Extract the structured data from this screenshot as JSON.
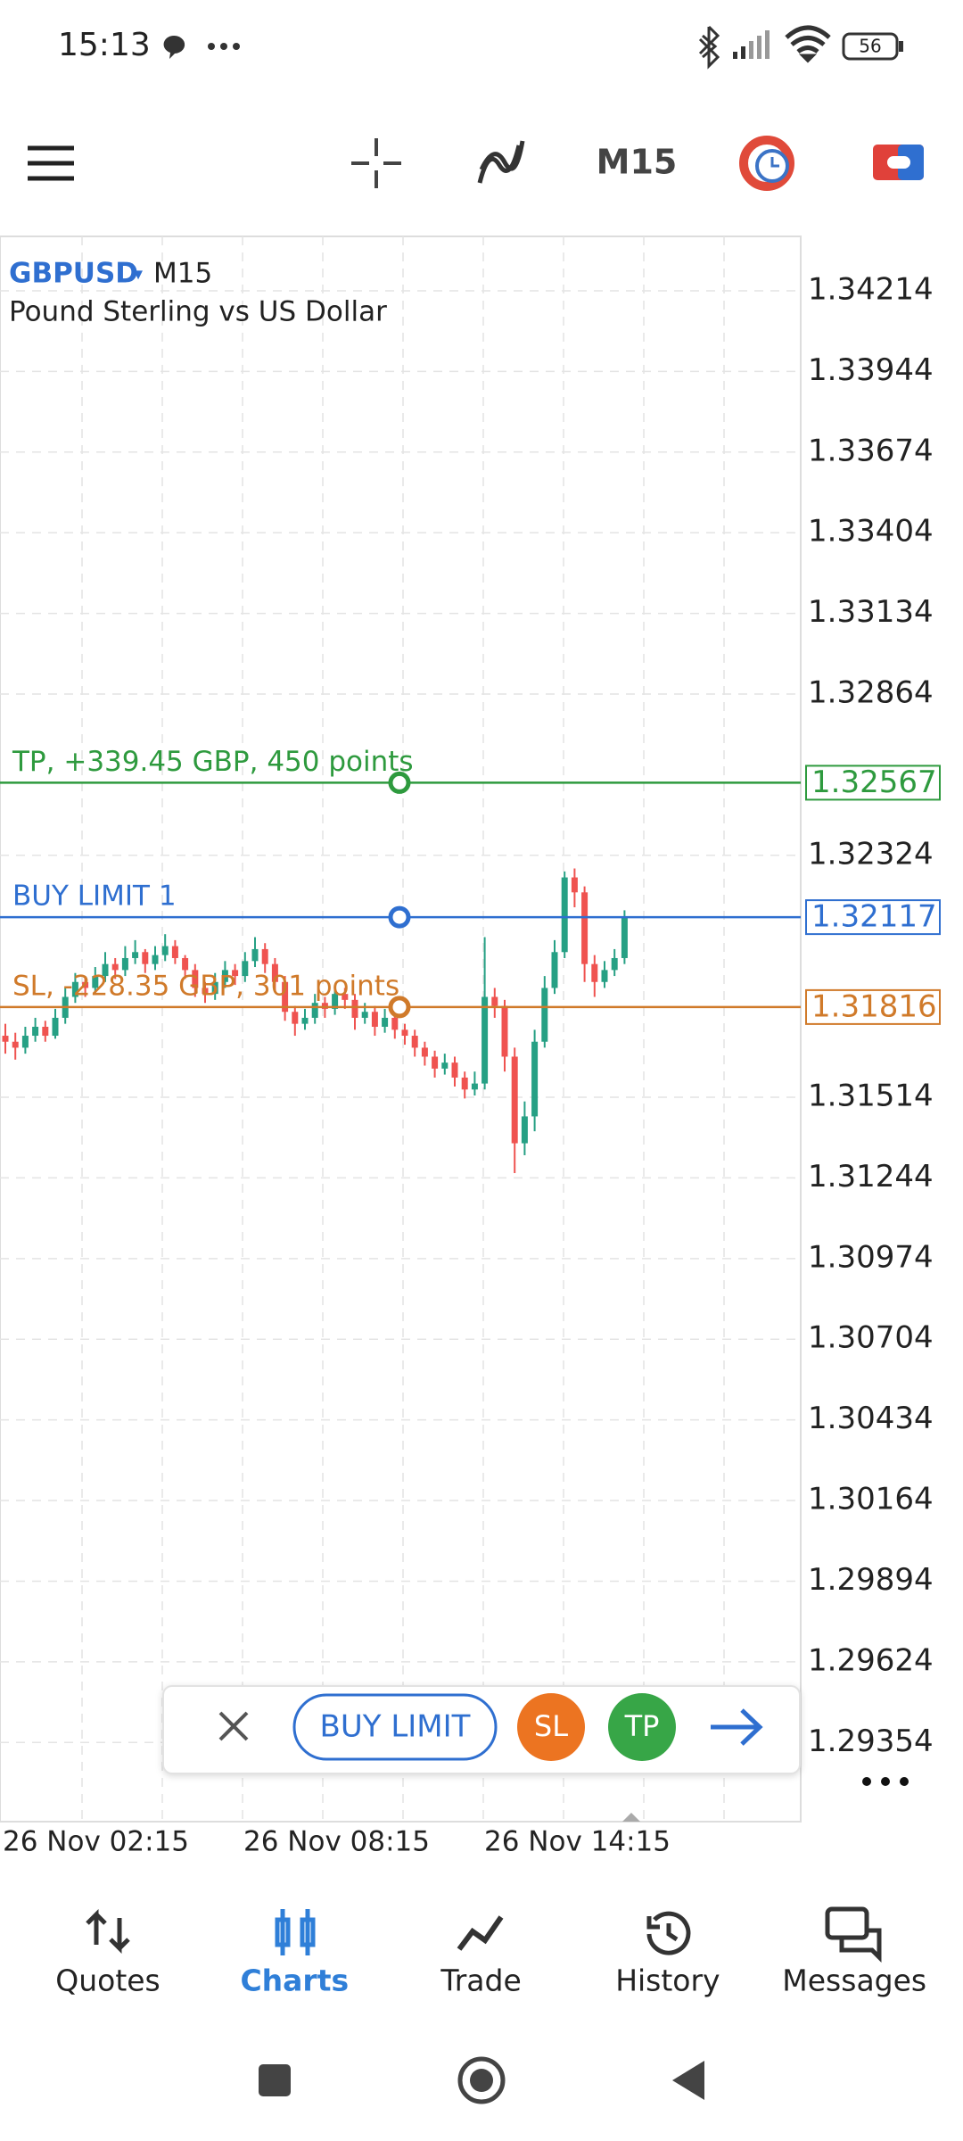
{
  "status_bar": {
    "time": "15:13",
    "battery": "56"
  },
  "toolbar": {
    "timeframe": "M15"
  },
  "chart_data": {
    "type": "candlestick",
    "symbol": "GBPUSD",
    "timeframe": "M15",
    "description": "Pound Sterling vs US Dollar",
    "bull_color": "#26a084",
    "bear_color": "#ef5350",
    "ylim": [
      1.29089,
      1.34396
    ],
    "yticks": [
      1.34214,
      1.33944,
      1.33674,
      1.33404,
      1.33134,
      1.32864,
      1.32324,
      1.31514,
      1.31244,
      1.30974,
      1.30704,
      1.30434,
      1.30164,
      1.29894,
      1.29624,
      1.29354
    ],
    "grid": true,
    "x_labels": [
      "26 Nov 02:15",
      "26 Nov 08:15",
      "26 Nov 14:15"
    ],
    "levels": [
      {
        "label": "TP, +339.45 GBP, 450 points",
        "price": 1.32567,
        "color": "#2e9a3e"
      },
      {
        "label": "BUY LIMIT 1",
        "price": 1.32117,
        "color": "#2f6fd0"
      },
      {
        "label": "SL, -228.35 GBP, 301 points",
        "price": 1.31816,
        "color": "#d07a2a"
      }
    ],
    "candles": [
      [
        1.3172,
        1.3176,
        1.3166,
        1.317
      ],
      [
        1.317,
        1.3173,
        1.3164,
        1.3168
      ],
      [
        1.3168,
        1.3175,
        1.3166,
        1.3172
      ],
      [
        1.3172,
        1.3178,
        1.317,
        1.3175
      ],
      [
        1.3175,
        1.3177,
        1.317,
        1.3172
      ],
      [
        1.3172,
        1.3181,
        1.3171,
        1.3178
      ],
      [
        1.3178,
        1.3188,
        1.3176,
        1.3185
      ],
      [
        1.3185,
        1.3193,
        1.3183,
        1.319
      ],
      [
        1.319,
        1.3192,
        1.3185,
        1.3188
      ],
      [
        1.3188,
        1.3195,
        1.3186,
        1.3192
      ],
      [
        1.3192,
        1.32,
        1.319,
        1.3196
      ],
      [
        1.3196,
        1.3198,
        1.3191,
        1.3194
      ],
      [
        1.3194,
        1.3202,
        1.3192,
        1.3198
      ],
      [
        1.3198,
        1.3204,
        1.3196,
        1.32
      ],
      [
        1.32,
        1.3201,
        1.3193,
        1.3196
      ],
      [
        1.3196,
        1.3202,
        1.3194,
        1.3199
      ],
      [
        1.3199,
        1.3206,
        1.3197,
        1.3202
      ],
      [
        1.3202,
        1.3204,
        1.3196,
        1.3198
      ],
      [
        1.3198,
        1.3199,
        1.3191,
        1.3194
      ],
      [
        1.3194,
        1.3196,
        1.3185,
        1.3188
      ],
      [
        1.3188,
        1.319,
        1.3183,
        1.3186
      ],
      [
        1.3186,
        1.3193,
        1.3184,
        1.319
      ],
      [
        1.319,
        1.3197,
        1.3188,
        1.3194
      ],
      [
        1.3194,
        1.3196,
        1.3189,
        1.3192
      ],
      [
        1.3192,
        1.32,
        1.319,
        1.3197
      ],
      [
        1.3197,
        1.3205,
        1.3195,
        1.3201
      ],
      [
        1.3201,
        1.3203,
        1.3193,
        1.3196
      ],
      [
        1.3196,
        1.3198,
        1.3187,
        1.319
      ],
      [
        1.319,
        1.3192,
        1.3177,
        1.318
      ],
      [
        1.318,
        1.3182,
        1.3172,
        1.3176
      ],
      [
        1.3176,
        1.3181,
        1.3174,
        1.3178
      ],
      [
        1.3178,
        1.3186,
        1.3176,
        1.3183
      ],
      [
        1.3183,
        1.3185,
        1.3178,
        1.3181
      ],
      [
        1.3181,
        1.3189,
        1.3179,
        1.3186
      ],
      [
        1.3186,
        1.3188,
        1.3181,
        1.3184
      ],
      [
        1.3184,
        1.3186,
        1.3174,
        1.3178
      ],
      [
        1.3178,
        1.3183,
        1.3176,
        1.318
      ],
      [
        1.318,
        1.3182,
        1.3172,
        1.3175
      ],
      [
        1.3175,
        1.3181,
        1.3173,
        1.3178
      ],
      [
        1.3178,
        1.318,
        1.3171,
        1.3174
      ],
      [
        1.3174,
        1.3176,
        1.3169,
        1.3172
      ],
      [
        1.3172,
        1.3174,
        1.3165,
        1.3168
      ],
      [
        1.3168,
        1.317,
        1.3162,
        1.3165
      ],
      [
        1.3165,
        1.3167,
        1.3158,
        1.3161
      ],
      [
        1.3161,
        1.3166,
        1.3159,
        1.3163
      ],
      [
        1.3163,
        1.3165,
        1.3155,
        1.3158
      ],
      [
        1.3158,
        1.316,
        1.3151,
        1.3154
      ],
      [
        1.3154,
        1.316,
        1.3152,
        1.3156
      ],
      [
        1.3156,
        1.3205,
        1.3154,
        1.3185
      ],
      [
        1.3185,
        1.3188,
        1.3178,
        1.3182
      ],
      [
        1.3182,
        1.3184,
        1.316,
        1.3165
      ],
      [
        1.3165,
        1.3168,
        1.3126,
        1.3136
      ],
      [
        1.3136,
        1.315,
        1.3132,
        1.3145
      ],
      [
        1.3145,
        1.3174,
        1.314,
        1.317
      ],
      [
        1.317,
        1.3192,
        1.3168,
        1.3188
      ],
      [
        1.3188,
        1.3204,
        1.3186,
        1.32
      ],
      [
        1.32,
        1.3227,
        1.3198,
        1.3225
      ],
      [
        1.3225,
        1.3228,
        1.3215,
        1.322
      ],
      [
        1.322,
        1.3222,
        1.319,
        1.3196
      ],
      [
        1.3196,
        1.3199,
        1.3185,
        1.319
      ],
      [
        1.319,
        1.3197,
        1.3188,
        1.3194
      ],
      [
        1.3194,
        1.3201,
        1.3192,
        1.3198
      ],
      [
        1.3198,
        1.3214,
        1.3196,
        1.3212
      ]
    ]
  },
  "order_bar": {
    "buy_limit": "BUY LIMIT",
    "sl": "SL",
    "tp": "TP"
  },
  "nav": {
    "items": [
      "Quotes",
      "Charts",
      "Trade",
      "History",
      "Messages"
    ]
  }
}
